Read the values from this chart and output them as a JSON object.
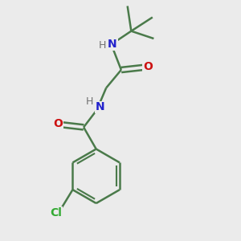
{
  "background_color": "#ebebeb",
  "bond_color": "#4a7a4a",
  "bond_width": 1.8,
  "atom_colors": {
    "N": "#2222cc",
    "O": "#cc1111",
    "Cl": "#33aa33",
    "H_label": "#707070",
    "C": "#4a7a4a"
  },
  "figsize": [
    3.0,
    3.0
  ],
  "dpi": 100,
  "xlim": [
    -0.05,
    1.0
  ],
  "ylim": [
    -1.05,
    0.65
  ]
}
